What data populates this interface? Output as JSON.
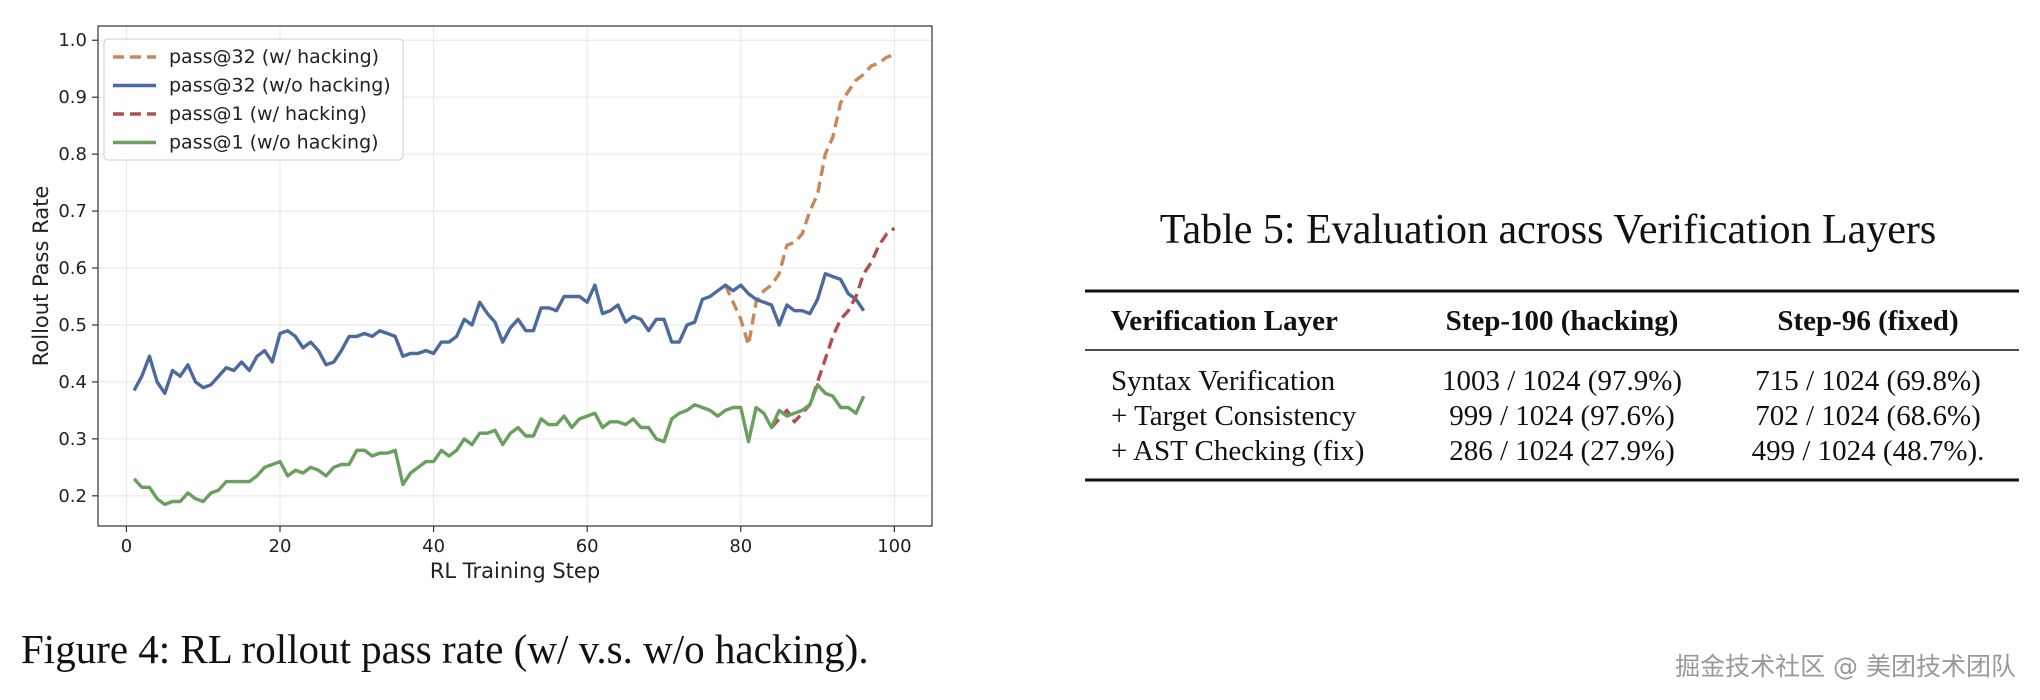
{
  "chart_data": {
    "type": "line",
    "xlabel": "RL Training Step",
    "ylabel": "Rollout Pass Rate",
    "x": [
      1,
      2,
      3,
      4,
      5,
      6,
      7,
      8,
      9,
      10,
      11,
      12,
      13,
      14,
      15,
      16,
      17,
      18,
      19,
      20,
      21,
      22,
      23,
      24,
      25,
      26,
      27,
      28,
      29,
      30,
      31,
      32,
      33,
      34,
      35,
      36,
      37,
      38,
      39,
      40,
      41,
      42,
      43,
      44,
      45,
      46,
      47,
      48,
      49,
      50,
      51,
      52,
      53,
      54,
      55,
      56,
      57,
      58,
      59,
      60,
      61,
      62,
      63,
      64,
      65,
      66,
      67,
      68,
      69,
      70,
      71,
      72,
      73,
      74,
      75,
      76,
      77,
      78,
      79,
      80,
      81,
      82,
      83,
      84,
      85,
      86,
      87,
      88,
      89,
      90,
      91,
      92,
      93,
      94,
      95,
      96,
      97,
      98,
      99,
      100
    ],
    "series": [
      {
        "name": "pass@32 (w/ hacking)",
        "color": "#c8895a",
        "style": "dashed",
        "values": [
          null,
          null,
          null,
          null,
          null,
          null,
          null,
          null,
          null,
          null,
          null,
          null,
          null,
          null,
          null,
          null,
          null,
          null,
          null,
          null,
          null,
          null,
          null,
          null,
          null,
          null,
          null,
          null,
          null,
          null,
          null,
          null,
          null,
          null,
          null,
          null,
          null,
          null,
          null,
          null,
          null,
          null,
          null,
          null,
          null,
          null,
          null,
          null,
          null,
          null,
          null,
          null,
          null,
          null,
          null,
          null,
          null,
          null,
          null,
          null,
          null,
          null,
          null,
          null,
          null,
          null,
          null,
          null,
          null,
          null,
          null,
          null,
          null,
          null,
          null,
          null,
          null,
          0.57,
          0.54,
          0.51,
          0.465,
          0.54,
          0.56,
          0.57,
          0.59,
          0.64,
          0.645,
          0.66,
          0.7,
          0.73,
          0.8,
          0.83,
          0.89,
          0.91,
          0.93,
          0.94,
          0.955,
          0.96,
          0.97,
          0.975
        ]
      },
      {
        "name": "pass@32 (w/o hacking)",
        "color": "#4c6aa0",
        "style": "solid",
        "values": [
          0.385,
          0.41,
          0.445,
          0.4,
          0.38,
          0.42,
          0.41,
          0.43,
          0.4,
          0.39,
          0.395,
          0.41,
          0.425,
          0.42,
          0.435,
          0.42,
          0.445,
          0.455,
          0.435,
          0.485,
          0.49,
          0.48,
          0.46,
          0.47,
          0.455,
          0.43,
          0.435,
          0.455,
          0.48,
          0.48,
          0.485,
          0.48,
          0.49,
          0.485,
          0.48,
          0.445,
          0.45,
          0.45,
          0.455,
          0.45,
          0.47,
          0.47,
          0.48,
          0.51,
          0.5,
          0.54,
          0.52,
          0.505,
          0.47,
          0.495,
          0.51,
          0.49,
          0.49,
          0.53,
          0.53,
          0.525,
          0.55,
          0.55,
          0.55,
          0.54,
          0.57,
          0.52,
          0.525,
          0.535,
          0.505,
          0.515,
          0.51,
          0.49,
          0.51,
          0.51,
          0.47,
          0.47,
          0.5,
          0.505,
          0.545,
          0.55,
          0.56,
          0.57,
          0.56,
          0.57,
          0.555,
          0.545,
          0.54,
          0.535,
          0.5,
          0.535,
          0.525,
          0.525,
          0.52,
          0.545,
          0.59,
          0.585,
          0.58,
          0.555,
          0.545,
          0.525,
          null,
          null,
          null,
          null
        ]
      },
      {
        "name": "pass@1 (w/ hacking)",
        "color": "#b05050",
        "style": "dashed",
        "values": [
          null,
          null,
          null,
          null,
          null,
          null,
          null,
          null,
          null,
          null,
          null,
          null,
          null,
          null,
          null,
          null,
          null,
          null,
          null,
          null,
          null,
          null,
          null,
          null,
          null,
          null,
          null,
          null,
          null,
          null,
          null,
          null,
          null,
          null,
          null,
          null,
          null,
          null,
          null,
          null,
          null,
          null,
          null,
          null,
          null,
          null,
          null,
          null,
          null,
          null,
          null,
          null,
          null,
          null,
          null,
          null,
          null,
          null,
          null,
          null,
          null,
          null,
          null,
          null,
          null,
          null,
          null,
          null,
          null,
          null,
          null,
          null,
          null,
          null,
          null,
          null,
          null,
          null,
          null,
          null,
          null,
          null,
          null,
          0.32,
          0.335,
          0.35,
          0.33,
          0.345,
          0.36,
          0.4,
          0.44,
          0.48,
          0.51,
          0.525,
          0.55,
          0.59,
          0.61,
          0.64,
          0.66,
          0.67
        ]
      },
      {
        "name": "pass@1 (w/o hacking)",
        "color": "#6a9f5f",
        "style": "solid",
        "values": [
          0.23,
          0.215,
          0.215,
          0.195,
          0.185,
          0.19,
          0.19,
          0.205,
          0.195,
          0.19,
          0.205,
          0.21,
          0.225,
          0.225,
          0.225,
          0.225,
          0.235,
          0.25,
          0.255,
          0.26,
          0.235,
          0.245,
          0.24,
          0.25,
          0.245,
          0.235,
          0.25,
          0.255,
          0.255,
          0.28,
          0.28,
          0.27,
          0.275,
          0.275,
          0.28,
          0.22,
          0.24,
          0.25,
          0.26,
          0.26,
          0.28,
          0.27,
          0.28,
          0.3,
          0.29,
          0.31,
          0.31,
          0.315,
          0.29,
          0.31,
          0.32,
          0.305,
          0.305,
          0.335,
          0.325,
          0.325,
          0.34,
          0.32,
          0.335,
          0.34,
          0.345,
          0.32,
          0.33,
          0.33,
          0.325,
          0.335,
          0.32,
          0.32,
          0.3,
          0.295,
          0.335,
          0.345,
          0.35,
          0.36,
          0.355,
          0.35,
          0.34,
          0.35,
          0.355,
          0.355,
          0.295,
          0.355,
          0.345,
          0.32,
          0.35,
          0.34,
          0.345,
          0.35,
          0.36,
          0.395,
          0.38,
          0.375,
          0.355,
          0.355,
          0.345,
          0.375,
          null,
          null,
          null,
          null
        ]
      }
    ],
    "xlim": [
      -3.7,
      104.9
    ],
    "ylim": [
      0.147,
      1.025
    ],
    "xticks": [
      0,
      20,
      40,
      60,
      80,
      100
    ],
    "yticks": [
      0.2,
      0.3,
      0.4,
      0.5,
      0.6,
      0.7,
      0.8,
      0.9,
      {
        "value": 1,
        "label": "1.0"
      }
    ],
    "grid": true,
    "legend": "upper-left"
  },
  "caption": "Figure 4: RL rollout pass rate (w/ v.s. w/o hacking).",
  "table": {
    "title": "Table 5: Evaluation across Verification Layers",
    "columns": [
      "Verification Layer",
      "Step-100 (hacking)",
      "Step-96 (fixed)"
    ],
    "rows": [
      [
        "Syntax Verification",
        "1003 / 1024 (97.9%)",
        "715 / 1024 (69.8%)"
      ],
      [
        "+ Target Consistency",
        "999 / 1024 (97.6%)",
        "702 / 1024 (68.6%)"
      ],
      [
        "+ AST Checking (fix)",
        "286 / 1024 (27.9%)",
        "499 / 1024 (48.7%)."
      ]
    ]
  },
  "watermark": "掘金技术社区 @ 美团技术团队"
}
